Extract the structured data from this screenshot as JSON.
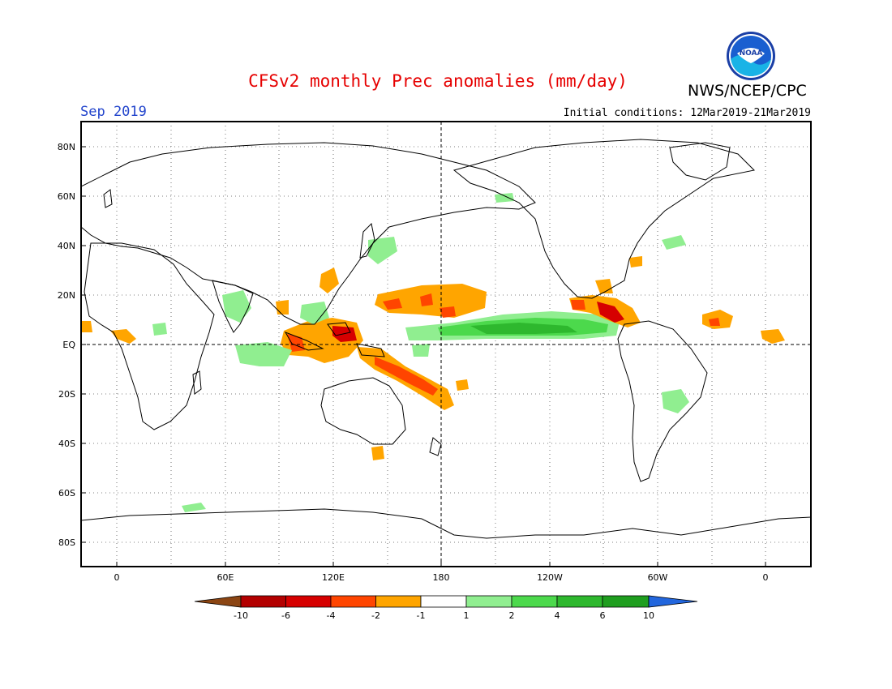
{
  "header": {
    "title": "CFSv2 monthly Prec anomalies (mm/day)",
    "agency": "NWS/NCEP/CPC",
    "logo_text": "NOAA",
    "valid_month": "Sep 2019",
    "initial_conditions": "Initial conditions: 12Mar2019-21Mar2019"
  },
  "axes": {
    "lat_labels": [
      "80N",
      "60N",
      "40N",
      "20N",
      "EQ",
      "20S",
      "40S",
      "60S",
      "80S"
    ],
    "lon_labels": [
      "0",
      "60E",
      "120E",
      "180",
      "120W",
      "60W",
      "0"
    ]
  },
  "colorbar": {
    "labels": [
      "-10",
      "-6",
      "-4",
      "-2",
      "-1",
      "1",
      "2",
      "4",
      "6",
      "10"
    ],
    "colors": [
      "#8b4513",
      "#b30000",
      "#d60000",
      "#ff4500",
      "#ffa500",
      "#ffffff",
      "#90ee90",
      "#4cd94c",
      "#2eb82e",
      "#1f9e1f",
      "#2266dd"
    ]
  },
  "map": {
    "type": "precipitation anomaly map",
    "projection": "equirectangular",
    "central_meridian": "180",
    "grid": "dotted, every 20° lat / 30° lon",
    "anomaly_colors": {
      "dry_moderate": "#ffa500",
      "dry_strong": "#ff4500",
      "dry_severe": "#d60000",
      "wet_light": "#90ee90",
      "wet_moderate": "#4cd94c",
      "wet_strong": "#2eb82e"
    }
  }
}
